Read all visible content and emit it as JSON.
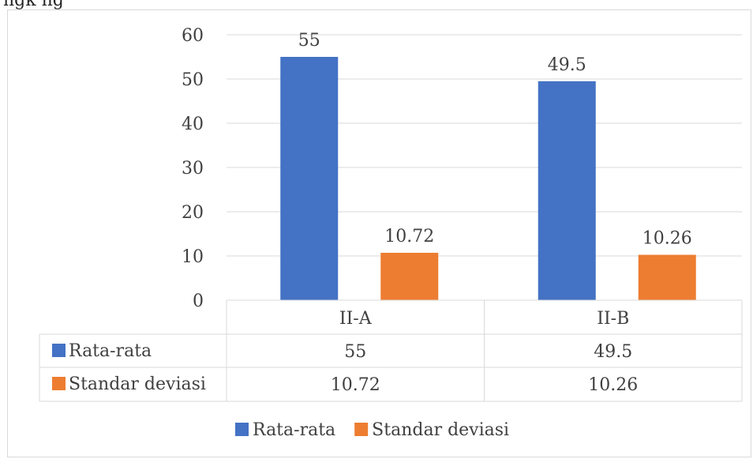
{
  "caption_fragment": "ngk                ng",
  "colors": {
    "series_0": "#4472C4",
    "series_1": "#ED7D31",
    "grid": "#d9d9d9",
    "text": "#404040"
  },
  "chart_data": {
    "type": "bar",
    "categories": [
      "II-A",
      "II-B"
    ],
    "series": [
      {
        "name": "Rata-rata",
        "values": [
          55,
          49.5
        ],
        "labels": [
          "55",
          "49.5"
        ]
      },
      {
        "name": "Standar deviasi",
        "values": [
          10.72,
          10.26
        ],
        "labels": [
          "10.72",
          "10.26"
        ]
      }
    ],
    "yticks": [
      "0",
      "10",
      "20",
      "30",
      "40",
      "50",
      "60"
    ],
    "ylim": [
      0,
      60
    ],
    "grid": true,
    "data_table": true,
    "legend": "bottom"
  }
}
